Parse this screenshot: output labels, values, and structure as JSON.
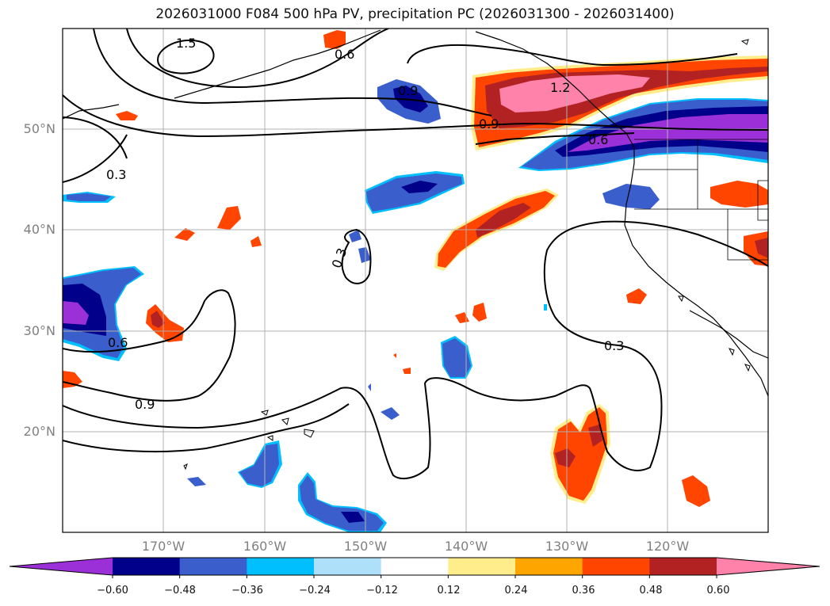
{
  "title": "2026031000 F084 500 hPa PV, precipitation PC (2026031300 - 2026031400)",
  "map": {
    "lat_labels": [
      "50°N",
      "40°N",
      "30°N",
      "20°N"
    ],
    "lon_labels": [
      "170°W",
      "160°W",
      "150°W",
      "140°W",
      "130°W",
      "120°W"
    ],
    "contour_labels": [
      "1.5",
      "0.6",
      "0.9",
      "1.2",
      "0.9",
      "0.6",
      "0.3",
      "0.3",
      "0.3",
      "0.6",
      "0.9"
    ]
  },
  "colorbar": {
    "colors": [
      "#9b30d8",
      "#00008b",
      "#3a5fcd",
      "#00bfff",
      "#afe0fa",
      "#ffffff",
      "#ffec8b",
      "#ffa500",
      "#ff4500",
      "#b22222",
      "#ff82ab"
    ],
    "tick_labels": [
      "−0.60",
      "−0.48",
      "−0.36",
      "−0.24",
      "−0.12",
      "0.12",
      "0.24",
      "0.36",
      "0.48",
      "0.60"
    ]
  }
}
